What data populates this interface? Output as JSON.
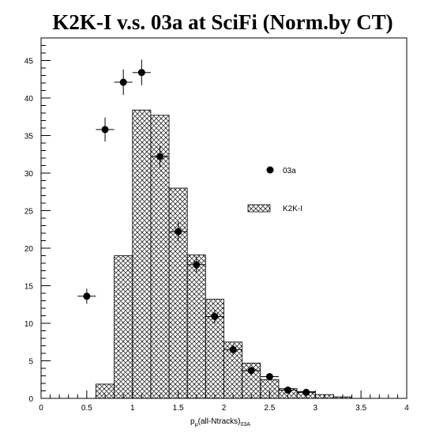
{
  "chart_data": {
    "type": "histogram_with_points",
    "title": "K2K-I v.s. 03a at SciFi (Norm.by CT)",
    "xlabel": {
      "main": "p",
      "sub1": "μ",
      "mid": "(all-Ntracks)",
      "sub2": "03A"
    },
    "ylabel": "",
    "xlim": [
      0,
      4
    ],
    "ylim": [
      0,
      48
    ],
    "x_ticks": [
      "0",
      "0.5",
      "1",
      "1.5",
      "2",
      "2.5",
      "3",
      "3.5",
      "4"
    ],
    "y_ticks": [
      "0",
      "5",
      "10",
      "15",
      "20",
      "25",
      "30",
      "35",
      "40",
      "45"
    ],
    "histogram": {
      "name": "K2K-I",
      "fill": "crosshatch",
      "bin_width": 0.2,
      "bins": [
        {
          "x": 0.6,
          "y": 1.9
        },
        {
          "x": 0.8,
          "y": 19.0
        },
        {
          "x": 1.0,
          "y": 38.4
        },
        {
          "x": 1.2,
          "y": 37.7
        },
        {
          "x": 1.4,
          "y": 28.0
        },
        {
          "x": 1.6,
          "y": 19.1
        },
        {
          "x": 1.8,
          "y": 13.2
        },
        {
          "x": 2.0,
          "y": 7.5
        },
        {
          "x": 2.2,
          "y": 4.7
        },
        {
          "x": 2.4,
          "y": 2.5
        },
        {
          "x": 2.6,
          "y": 1.3
        },
        {
          "x": 2.8,
          "y": 0.9
        },
        {
          "x": 3.0,
          "y": 0.5
        },
        {
          "x": 3.2,
          "y": 0.2
        }
      ]
    },
    "points": {
      "name": "03a",
      "x_err": 0.1,
      "data": [
        {
          "x": 0.5,
          "y": 13.6,
          "err": 1.0
        },
        {
          "x": 0.7,
          "y": 35.8,
          "err": 1.6
        },
        {
          "x": 0.9,
          "y": 42.1,
          "err": 1.7
        },
        {
          "x": 1.1,
          "y": 43.4,
          "err": 1.7
        },
        {
          "x": 1.3,
          "y": 32.2,
          "err": 1.5
        },
        {
          "x": 1.5,
          "y": 22.2,
          "err": 1.3
        },
        {
          "x": 1.7,
          "y": 17.8,
          "err": 1.1
        },
        {
          "x": 1.9,
          "y": 10.9,
          "err": 0.9
        },
        {
          "x": 2.1,
          "y": 6.5,
          "err": 0.7
        },
        {
          "x": 2.3,
          "y": 3.7,
          "err": 0.5
        },
        {
          "x": 2.5,
          "y": 2.9,
          "err": 0.4
        },
        {
          "x": 2.7,
          "y": 1.1,
          "err": 0.3
        },
        {
          "x": 2.9,
          "y": 0.8,
          "err": 0.2
        }
      ]
    },
    "legend": [
      {
        "label": "03a",
        "marker": "circle"
      },
      {
        "label": "K2K-I",
        "marker": "crosshatch"
      }
    ],
    "grid": false
  }
}
